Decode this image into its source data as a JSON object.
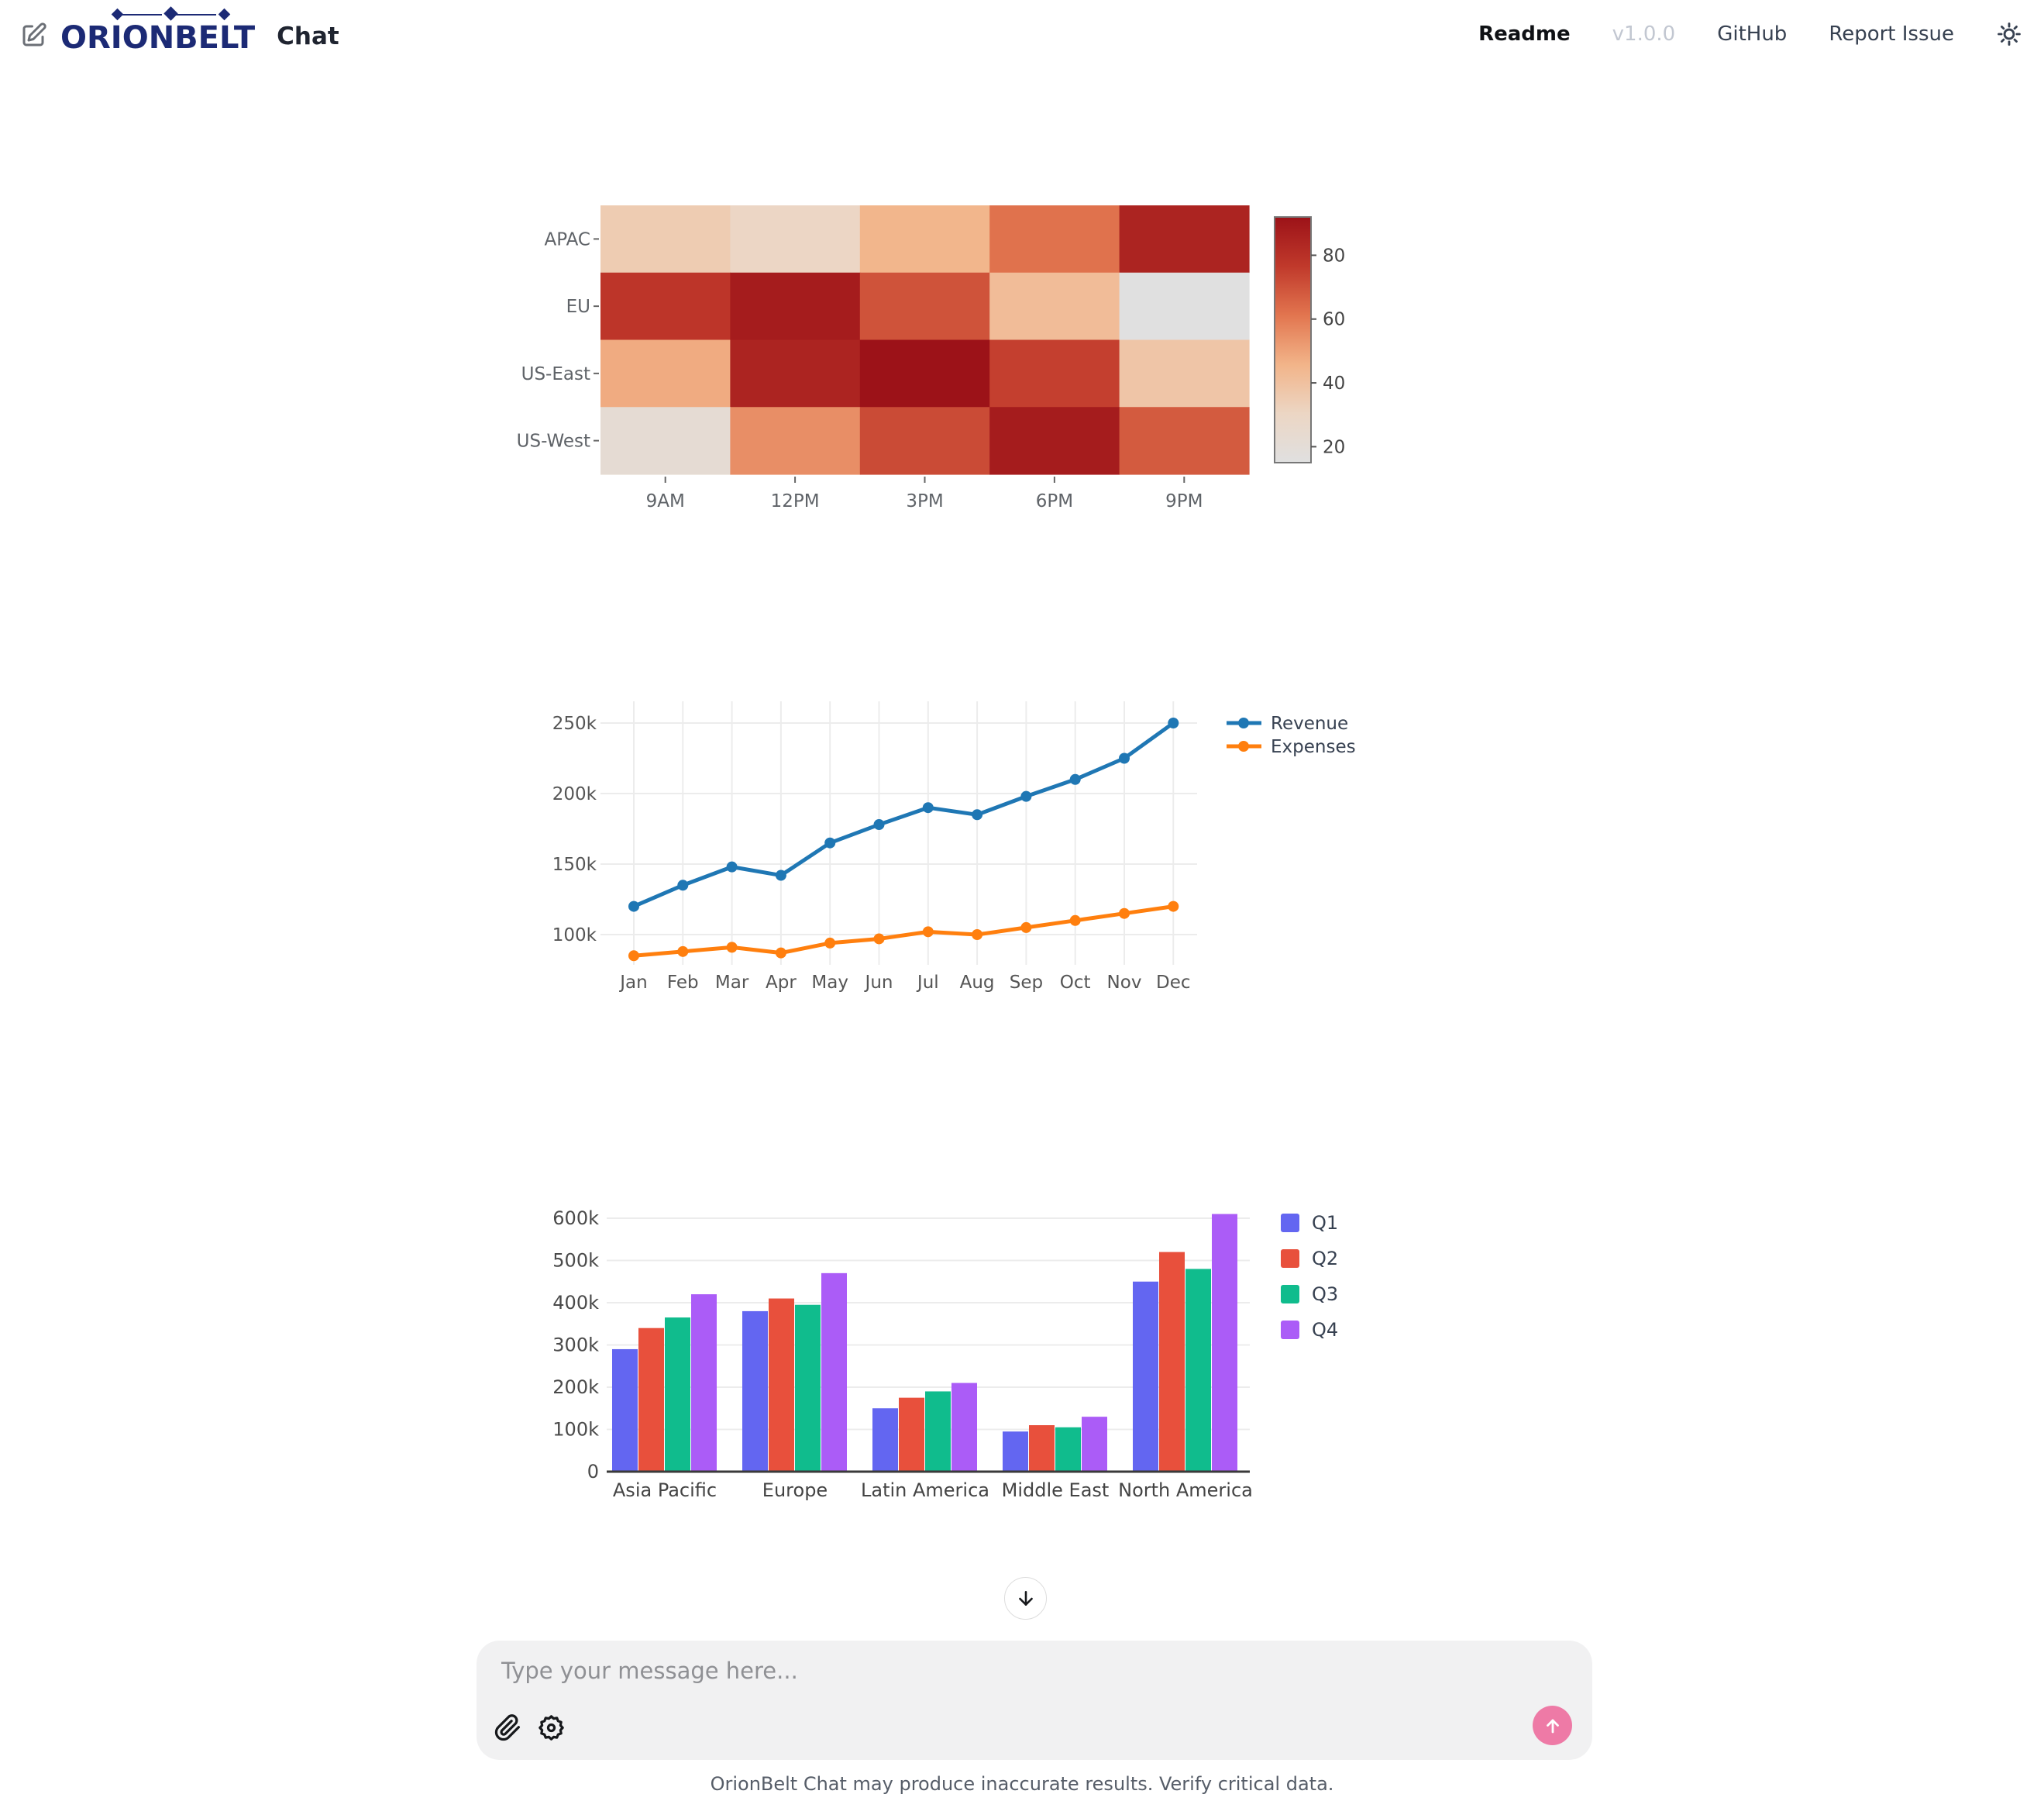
{
  "header": {
    "brand": "ORIONBELT",
    "app_title": "Chat",
    "nav": [
      {
        "id": "readme",
        "label": "Readme"
      },
      {
        "id": "version",
        "label": "v1.0.0"
      },
      {
        "id": "github",
        "label": "GitHub"
      },
      {
        "id": "report-issue",
        "label": "Report Issue"
      }
    ],
    "theme_icon": "sun-icon"
  },
  "chart_data": [
    {
      "type": "heatmap",
      "rows": [
        "APAC",
        "EU",
        "US-East",
        "US-West"
      ],
      "columns": [
        "9AM",
        "12PM",
        "3PM",
        "6PM",
        "9PM"
      ],
      "values": [
        [
          35,
          30,
          45,
          62,
          85
        ],
        [
          78,
          88,
          70,
          42,
          15
        ],
        [
          48,
          85,
          92,
          75,
          38
        ],
        [
          22,
          55,
          72,
          88,
          68
        ]
      ],
      "scale_min": 15,
      "scale_max": 92,
      "colorbar_ticks": [
        20,
        40,
        60,
        80
      ],
      "colorscale": [
        "#e0e0e0",
        "#ecd6c4",
        "#f2b489",
        "#e2754f",
        "#c0392b",
        "#9c1218"
      ],
      "grid": false,
      "legend_position": "colorbar-right"
    },
    {
      "type": "line",
      "x": [
        "Jan",
        "Feb",
        "Mar",
        "Apr",
        "May",
        "Jun",
        "Jul",
        "Aug",
        "Sep",
        "Oct",
        "Nov",
        "Dec"
      ],
      "series": [
        {
          "name": "Revenue",
          "color": "#1f77b4",
          "values": [
            120000,
            135000,
            148000,
            142000,
            165000,
            178000,
            190000,
            185000,
            198000,
            210000,
            225000,
            250000
          ]
        },
        {
          "name": "Expenses",
          "color": "#ff7f0e",
          "values": [
            85000,
            88000,
            91000,
            87000,
            94000,
            97000,
            102000,
            100000,
            105000,
            110000,
            115000,
            120000
          ]
        }
      ],
      "yticks": [
        100000,
        150000,
        200000,
        250000
      ],
      "ytick_labels": [
        "100k",
        "150k",
        "200k",
        "250k"
      ],
      "ylim": [
        75000,
        262000
      ],
      "grid": true,
      "legend_position": "top-right"
    },
    {
      "type": "bar",
      "categories": [
        "Asia Pacific",
        "Europe",
        "Latin America",
        "Middle East",
        "North America"
      ],
      "series": [
        {
          "name": "Q1",
          "color": "#6366f1",
          "values": [
            290000,
            380000,
            150000,
            95000,
            450000
          ]
        },
        {
          "name": "Q2",
          "color": "#e8503c",
          "values": [
            340000,
            410000,
            175000,
            110000,
            520000
          ]
        },
        {
          "name": "Q3",
          "color": "#10bc8d",
          "values": [
            365000,
            395000,
            190000,
            105000,
            480000
          ]
        },
        {
          "name": "Q4",
          "color": "#ab5cf7",
          "values": [
            420000,
            470000,
            210000,
            130000,
            610000
          ]
        }
      ],
      "yticks": [
        0,
        100000,
        200000,
        300000,
        400000,
        500000,
        600000
      ],
      "ytick_labels": [
        "0",
        "100k",
        "200k",
        "300k",
        "400k",
        "500k",
        "600k"
      ],
      "ylim": [
        0,
        620000
      ],
      "grid": true,
      "legend_position": "right"
    }
  ],
  "scroll_button": {
    "icon": "arrow-down-icon"
  },
  "composer": {
    "placeholder": "Type your message here...",
    "value": "",
    "attach_icon": "paperclip-icon",
    "settings_icon": "gear-icon",
    "send_icon": "arrow-up-icon",
    "send_color": "#ee7aa6"
  },
  "footer": {
    "disclaimer": "OrionBelt Chat may produce inaccurate results. Verify critical data."
  }
}
